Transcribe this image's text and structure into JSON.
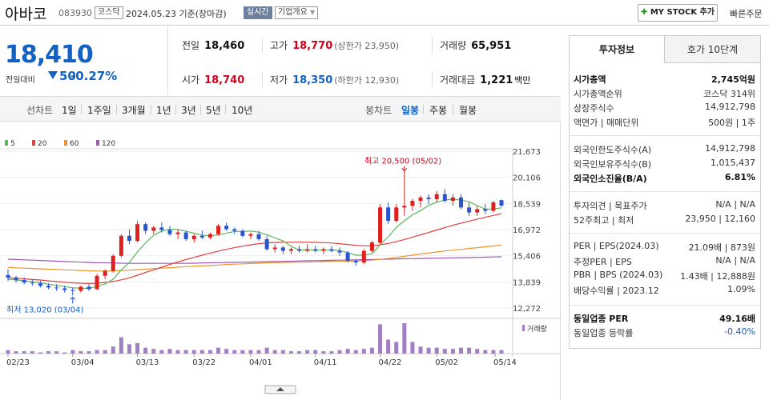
{
  "header": {
    "name": "아바코",
    "code": "083930",
    "market": "코스닥",
    "date": "2024.05.23 기준(장마감)",
    "realtime": "실시간",
    "company_info": "기업개요",
    "mystock": "MY STOCK 추가",
    "quick_order": "빠른주문"
  },
  "summary": {
    "price": "18,410",
    "change_label": "전일대비",
    "change": "50",
    "change_pct": "-0.27%"
  },
  "stats": {
    "prev_label": "전일",
    "prev": "18,460",
    "high_label": "고가",
    "high": "18,770",
    "upper_limit": "(상한가 23,950)",
    "volume_label": "거래량",
    "volume": "65,951",
    "open_label": "시가",
    "open": "18,740",
    "low_label": "저가",
    "low": "18,350",
    "lower_limit": "(하한가 12,930)",
    "amount_label": "거래대금",
    "amount": "1,221",
    "amount_unit": "백만"
  },
  "toolbar": {
    "line_label": "선차트",
    "periods": [
      "1일",
      "1주일",
      "3개월",
      "1년",
      "3년",
      "5년",
      "10년"
    ],
    "candle_label": "봉차트",
    "candles": [
      "일봉",
      "주봉",
      "월봉"
    ]
  },
  "chart_data": {
    "type": "candlestick",
    "legend": [
      {
        "name": "5",
        "color": "#5cb85c"
      },
      {
        "name": "20",
        "color": "#e04040"
      },
      {
        "name": "60",
        "color": "#f0922b"
      },
      {
        "name": "120",
        "color": "#9b59b6"
      }
    ],
    "yticks": [
      "21,673",
      "20,106",
      "18,539",
      "16,972",
      "15,406",
      "13,839",
      "12,272"
    ],
    "ylim": [
      12272,
      21673
    ],
    "xticks": [
      "02/23",
      "03/04",
      "03/13",
      "03/22",
      "04/01",
      "04/11",
      "04/22",
      "05/02",
      "05/14"
    ],
    "high_note": "최고 20,500 (05/02)",
    "low_note": "최저 13,020 (03/04)",
    "volume_label": "거래량",
    "candles": [
      [
        14250,
        14600,
        13900,
        14100
      ],
      [
        14100,
        14200,
        13800,
        13950
      ],
      [
        13950,
        14100,
        13700,
        13800
      ],
      [
        13800,
        14000,
        13600,
        13750
      ],
      [
        13750,
        13900,
        13500,
        13600
      ],
      [
        13600,
        13750,
        13400,
        13500
      ],
      [
        13500,
        13700,
        13300,
        13450
      ],
      [
        13450,
        13600,
        13200,
        13350
      ],
      [
        13350,
        13500,
        13020,
        13300
      ],
      [
        13300,
        13600,
        13200,
        13550
      ],
      [
        13550,
        13700,
        13300,
        13400
      ],
      [
        13400,
        14300,
        13350,
        14200
      ],
      [
        14200,
        14600,
        14000,
        14500
      ],
      [
        14500,
        15500,
        14400,
        15400
      ],
      [
        15400,
        16700,
        15300,
        16600
      ],
      [
        16600,
        17000,
        16100,
        16300
      ],
      [
        16300,
        17500,
        16200,
        17300
      ],
      [
        17300,
        17400,
        16700,
        16900
      ],
      [
        16900,
        17200,
        16700,
        17100
      ],
      [
        17100,
        17400,
        16800,
        16950
      ],
      [
        16950,
        17200,
        16600,
        16700
      ],
      [
        16700,
        17000,
        16400,
        16800
      ],
      [
        16800,
        16900,
        16300,
        16400
      ],
      [
        16400,
        16700,
        16200,
        16600
      ],
      [
        16600,
        16900,
        16400,
        16500
      ],
      [
        16500,
        16800,
        16400,
        16700
      ],
      [
        16700,
        17300,
        16600,
        17200
      ],
      [
        17200,
        17400,
        16900,
        17000
      ],
      [
        17000,
        17100,
        16700,
        16900
      ],
      [
        16900,
        17000,
        16500,
        16600
      ],
      [
        16600,
        16800,
        16400,
        16700
      ],
      [
        16700,
        16900,
        16300,
        16400
      ],
      [
        16400,
        16600,
        15700,
        15800
      ],
      [
        15800,
        16100,
        15600,
        15900
      ],
      [
        15900,
        16000,
        15500,
        15700
      ],
      [
        15700,
        15900,
        15500,
        15800
      ],
      [
        15800,
        16000,
        15600,
        15700
      ],
      [
        15700,
        16100,
        15600,
        15800
      ],
      [
        15800,
        16000,
        15600,
        15700
      ],
      [
        15700,
        15900,
        15500,
        15800
      ],
      [
        15800,
        16000,
        15600,
        15700
      ],
      [
        15700,
        15900,
        15400,
        15600
      ],
      [
        15600,
        15700,
        15000,
        15100
      ],
      [
        15100,
        15200,
        14800,
        15000
      ],
      [
        15000,
        15800,
        14900,
        15700
      ],
      [
        15700,
        16300,
        15600,
        16200
      ],
      [
        16200,
        18500,
        16100,
        18300
      ],
      [
        18300,
        18600,
        17300,
        17500
      ],
      [
        17500,
        18500,
        17400,
        18300
      ],
      [
        18300,
        20500,
        17800,
        18400
      ],
      [
        18400,
        18800,
        18100,
        18700
      ],
      [
        18700,
        19000,
        18300,
        18900
      ],
      [
        18900,
        19100,
        18500,
        18800
      ],
      [
        18800,
        19300,
        18600,
        19100
      ],
      [
        19100,
        19400,
        18600,
        18700
      ],
      [
        18700,
        19100,
        18400,
        18900
      ],
      [
        18900,
        19100,
        18200,
        18300
      ],
      [
        18300,
        18600,
        17800,
        18000
      ],
      [
        18000,
        18400,
        17800,
        18200
      ],
      [
        18200,
        18500,
        17900,
        18100
      ],
      [
        18100,
        18700,
        18000,
        18600
      ],
      [
        18740,
        18770,
        18350,
        18410
      ]
    ],
    "volumes": [
      3,
      2,
      2,
      2,
      1,
      2,
      2,
      1,
      3,
      2,
      2,
      3,
      3,
      6,
      14,
      8,
      9,
      5,
      4,
      3,
      4,
      3,
      3,
      3,
      3,
      3,
      5,
      4,
      3,
      3,
      3,
      3,
      5,
      3,
      3,
      2,
      2,
      3,
      3,
      2,
      2,
      3,
      4,
      3,
      4,
      5,
      25,
      12,
      10,
      26,
      10,
      6,
      5,
      5,
      4,
      4,
      5,
      5,
      4,
      3,
      3,
      3
    ],
    "ma5": [
      14000,
      13950,
      13900,
      13850,
      13780,
      13700,
      13630,
      13560,
      13480,
      13460,
      13440,
      13560,
      13720,
      14000,
      14560,
      15000,
      15640,
      16160,
      16640,
      16880,
      16990,
      16980,
      16880,
      16750,
      16630,
      16610,
      16650,
      16760,
      16860,
      16860,
      16880,
      16820,
      16660,
      16480,
      16300,
      15980,
      15740,
      15740,
      15740,
      15740,
      15740,
      15720,
      15590,
      15440,
      15440,
      15520,
      16060,
      16540,
      17100,
      17500,
      17860,
      18110,
      18420,
      18620,
      18740,
      18800,
      18740,
      18640,
      18410,
      18200,
      18200,
      18280
    ],
    "ma20": [
      14100,
      14050,
      14020,
      13980,
      13950,
      13900,
      13860,
      13820,
      13780,
      13760,
      13740,
      13760,
      13800,
      13860,
      13960,
      14080,
      14240,
      14400,
      14560,
      14720,
      14880,
      15030,
      15180,
      15310,
      15440,
      15560,
      15680,
      15790,
      15890,
      15980,
      16060,
      16130,
      16180,
      16200,
      16210,
      16220,
      16220,
      16220,
      16210,
      16190,
      16170,
      16130,
      16080,
      16030,
      16000,
      16000,
      16060,
      16140,
      16250,
      16380,
      16520,
      16660,
      16800,
      16950,
      17090,
      17230,
      17360,
      17480,
      17600,
      17710,
      17820,
      17930
    ],
    "ma60": [
      14700,
      14680,
      14660,
      14640,
      14620,
      14600,
      14580,
      14560,
      14540,
      14520,
      14500,
      14490,
      14490,
      14500,
      14520,
      14540,
      14570,
      14600,
      14630,
      14660,
      14690,
      14720,
      14750,
      14780,
      14800,
      14820,
      14850,
      14880,
      14900,
      14920,
      14940,
      14960,
      14980,
      14990,
      15000,
      15010,
      15020,
      15030,
      15040,
      15050,
      15060,
      15070,
      15080,
      15090,
      15110,
      15140,
      15190,
      15240,
      15300,
      15370,
      15440,
      15510,
      15570,
      15630,
      15690,
      15740,
      15790,
      15840,
      15890,
      15940,
      15990,
      16050
    ],
    "ma120": [
      15200,
      15180,
      15160,
      15140,
      15120,
      15100,
      15080,
      15060,
      15040,
      15020,
      15000,
      14990,
      14980,
      14970,
      14960,
      14950,
      14950,
      14950,
      14950,
      14950,
      14950,
      14950,
      14950,
      14960,
      14970,
      14980,
      14990,
      15000,
      15010,
      15020,
      15030,
      15040,
      15050,
      15060,
      15070,
      15080,
      15090,
      15100,
      15110,
      15120,
      15130,
      15140,
      15150,
      15160,
      15170,
      15180,
      15190,
      15200,
      15210,
      15220,
      15230,
      15240,
      15250,
      15260,
      15270,
      15280,
      15290,
      15300,
      15310,
      15320,
      15330,
      15340
    ]
  },
  "panel": {
    "tab_info": "투자정보",
    "tab_quote": "호가 10단계",
    "rows": [
      {
        "k": "시가총액",
        "v": "2,745억원",
        "bold": true
      },
      {
        "k": "시가총액순위",
        "v": "코스닥 314위"
      },
      {
        "k": "상장주식수",
        "v": "14,912,798"
      },
      {
        "k": "액면가 | 매매단위",
        "v": "500원 | 1주"
      },
      {
        "k": "외국인한도주식수(A)",
        "v": "14,912,798"
      },
      {
        "k": "외국인보유주식수(B)",
        "v": "1,015,437"
      },
      {
        "k": "외국인소진율(B/A)",
        "v": "6.81%",
        "bold": true
      },
      {
        "k": "투자의견 | 목표주가",
        "v": "N/A | N/A"
      },
      {
        "k": "52주최고 | 최저",
        "v": "23,950 | 12,160"
      },
      {
        "k": "PER | EPS(2024.03)",
        "v": "21.09배 | 873원"
      },
      {
        "k": "추정PER | EPS",
        "v": "N/A | N/A"
      },
      {
        "k": "PBR | BPS (2024.03)",
        "v": "1.43배 | 12,888원"
      },
      {
        "k": "배당수익률 | 2023.12",
        "v": "1.09%"
      },
      {
        "k": "동일업종 PER",
        "v": "49.16배",
        "bold": true
      },
      {
        "k": "동일업종 등락률",
        "v": "-0.40%",
        "blue": true
      }
    ]
  }
}
